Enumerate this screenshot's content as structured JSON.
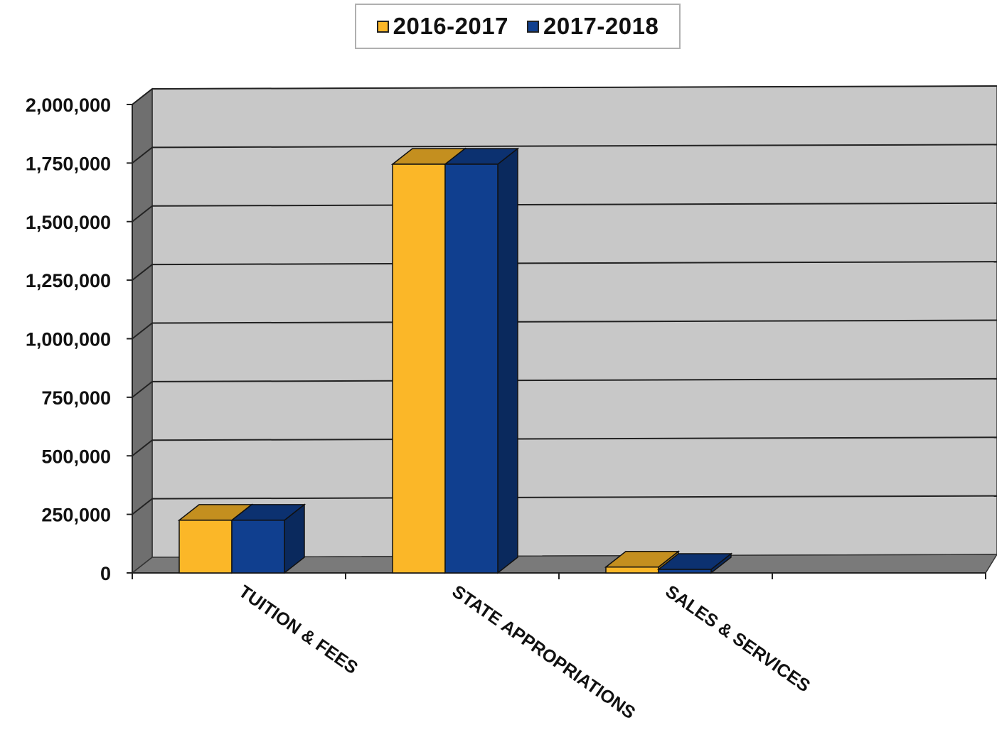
{
  "chart_data": {
    "type": "bar",
    "style": "3d-clustered-column",
    "categories": [
      "TUITION & FEES",
      "STATE APPROPRIATIONS",
      "SALES & SERVICES",
      ""
    ],
    "series": [
      {
        "name": "2016-2017",
        "color": "#fbb728",
        "values": [
          225000,
          1745000,
          25000,
          0
        ]
      },
      {
        "name": "2017-2018",
        "color": "#103f8f",
        "values": [
          225000,
          1745000,
          15000,
          0
        ]
      }
    ],
    "yticks": [
      "0",
      "250,000",
      "500,000",
      "750,000",
      "1,000,000",
      "1,250,000",
      "1,500,000",
      "1,750,000",
      "2,000,000"
    ],
    "ylim": [
      0,
      2000000
    ],
    "grid": true,
    "legend": "top-center",
    "wall_color": "#c8c8c8"
  }
}
